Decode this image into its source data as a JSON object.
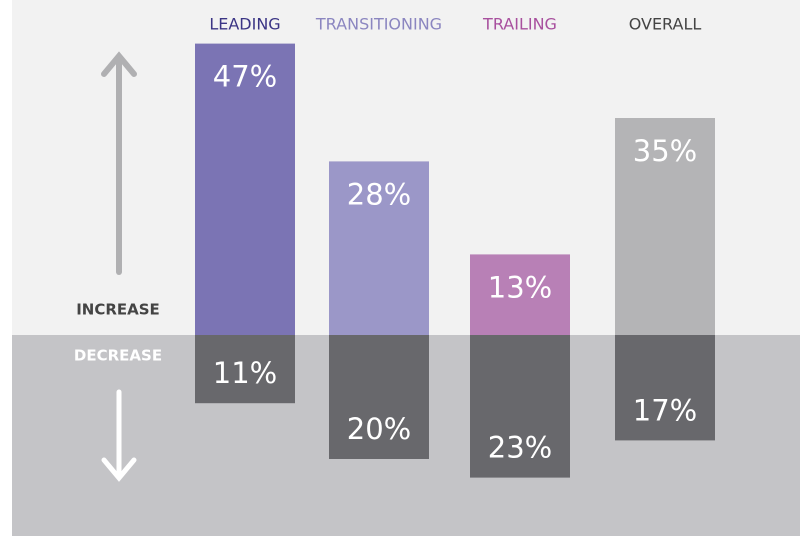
{
  "chart_data": {
    "type": "diverging_bar",
    "categories": [
      "LEADING",
      "TRANSITIONING",
      "TRAILING",
      "OVERALL"
    ],
    "category_colors": [
      "#3b3585",
      "#8b86c0",
      "#a8509e",
      "#444444"
    ],
    "series": [
      {
        "name": "INCREASE",
        "direction": "up",
        "colors": [
          "#7b74b4",
          "#9b97c8",
          "#b880b6",
          "#b4b4b6"
        ],
        "values": [
          47,
          28,
          13,
          35
        ],
        "value_labels": [
          "47%",
          "28%",
          "13%",
          "35%"
        ]
      },
      {
        "name": "DECREASE",
        "direction": "down",
        "color": "#68686c",
        "values": [
          11,
          20,
          23,
          17
        ],
        "value_labels": [
          "11%",
          "20%",
          "23%",
          "17%"
        ]
      }
    ]
  }
}
